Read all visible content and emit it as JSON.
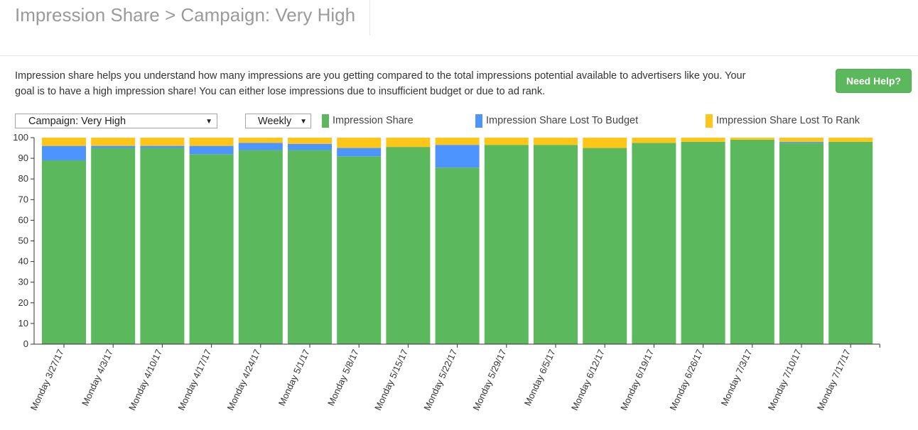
{
  "header": {
    "title": "Impression Share > Campaign: Very High"
  },
  "description": "Impression share helps you understand how many impressions are you getting compared to the total impressions potential available to advertisers like you. Your goal is to have a high impression share! You can either lose impressions due to insufficient budget or due to ad rank.",
  "help_button": {
    "label": "Need Help?"
  },
  "filters": {
    "campaign": {
      "selected": "Campaign: Very High",
      "arrow": "▼"
    },
    "period": {
      "selected": "Weekly",
      "arrow": "▼"
    }
  },
  "colors": {
    "impression_share": "#5cb85c",
    "lost_budget": "#4d94ff",
    "lost_rank": "#ffc61a",
    "help_button": "#5cb85c"
  },
  "legend": [
    {
      "label": "Impression Share",
      "color": "#5cb85c"
    },
    {
      "label": "Impression Share Lost To Budget",
      "color": "#4d94ff"
    },
    {
      "label": "Impression Share Lost To Rank",
      "color": "#ffc61a"
    }
  ],
  "chart_data": {
    "type": "bar",
    "stacked": true,
    "title": "",
    "xlabel": "",
    "ylabel": "",
    "ylim": [
      0,
      100
    ],
    "yticks": [
      0,
      10,
      20,
      30,
      40,
      50,
      60,
      70,
      80,
      90,
      100
    ],
    "categories": [
      "Monday 3/27/17",
      "Monday 4/3/17",
      "Monday 4/10/17",
      "Monday 4/17/17",
      "Monday 4/24/17",
      "Monday 5/1/17",
      "Monday 5/8/17",
      "Monday 5/15/17",
      "Monday 5/22/17",
      "Monday 5/29/17",
      "Monday 6/5/17",
      "Monday 6/12/17",
      "Monday 6/19/17",
      "Monday 6/26/17",
      "Monday 7/3/17",
      "Monday 7/10/17",
      "Monday 7/17/17"
    ],
    "series": [
      {
        "name": "Impression Share",
        "values": [
          89,
          95,
          95,
          92,
          94,
          94,
          91,
          95.5,
          85.5,
          96.5,
          96.5,
          95,
          97.5,
          98,
          99,
          97.5,
          98
        ]
      },
      {
        "name": "Impression Share Lost To Budget",
        "values": [
          7,
          1,
          1,
          4,
          3.5,
          3,
          4,
          0,
          11,
          0,
          0,
          0,
          0,
          0,
          0,
          0.5,
          0
        ]
      },
      {
        "name": "Impression Share Lost To Rank",
        "values": [
          4,
          4,
          4,
          4,
          2.5,
          3,
          5,
          4.5,
          3.5,
          3.5,
          3.5,
          5,
          2.5,
          2,
          1,
          2,
          2
        ]
      }
    ]
  }
}
